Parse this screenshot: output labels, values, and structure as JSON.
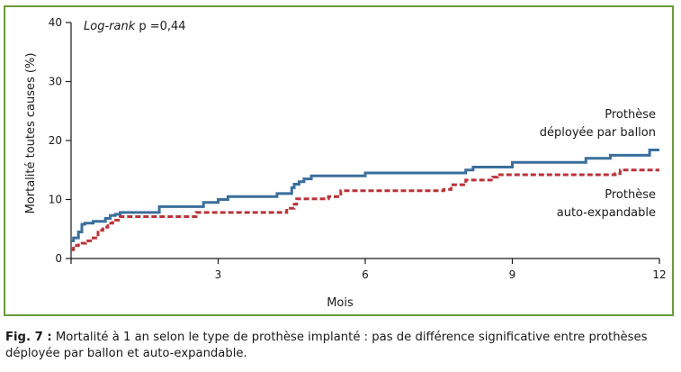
{
  "chart_data": {
    "type": "line",
    "xlabel": "Mois",
    "ylabel": "Mortalité toutes causes (%)",
    "x_ticks": [
      0,
      3,
      6,
      9,
      12
    ],
    "x_tick_labels": [
      "",
      "3",
      "6",
      "9",
      "12"
    ],
    "y_ticks": [
      0,
      10,
      20,
      30,
      40
    ],
    "y_tick_labels": [
      "0",
      "10",
      "20",
      "30",
      "40"
    ],
    "xlim": [
      0,
      12
    ],
    "ylim": [
      0,
      40
    ],
    "grid": false,
    "annotation_prefix": "Log-rank",
    "annotation_value": " p =0,44",
    "series": [
      {
        "name_line1": "Prothèse",
        "name_line2": "déployée par ballon",
        "color": "#3a6f9c",
        "style": "solid",
        "x": [
          0,
          0.05,
          0.15,
          0.22,
          0.28,
          0.45,
          0.7,
          0.8,
          0.9,
          1.0,
          1.8,
          2.7,
          3.0,
          3.2,
          4.2,
          4.5,
          4.55,
          4.65,
          4.75,
          4.9,
          6.0,
          8.05,
          8.2,
          9.0,
          10.5,
          11.0,
          11.8,
          12.0
        ],
        "y": [
          3.0,
          3.5,
          4.5,
          5.8,
          6.0,
          6.3,
          6.8,
          7.3,
          7.5,
          7.8,
          8.8,
          9.5,
          10.0,
          10.5,
          11.0,
          12.0,
          12.6,
          13.0,
          13.5,
          14.0,
          14.5,
          15.0,
          15.5,
          16.3,
          17.0,
          17.5,
          18.4,
          18.4
        ]
      },
      {
        "name_line1": "Prothèse",
        "name_line2": "auto-expandable",
        "color": "#b8343a",
        "style": "dashed",
        "x": [
          0,
          0.05,
          0.15,
          0.3,
          0.45,
          0.55,
          0.65,
          0.75,
          0.85,
          1.0,
          2.55,
          4.4,
          4.55,
          4.6,
          5.25,
          5.5,
          7.6,
          7.75,
          8.05,
          8.6,
          8.7,
          11.1,
          11.2,
          12.0
        ],
        "y": [
          1.5,
          2.2,
          2.6,
          3.0,
          3.5,
          4.8,
          5.3,
          6.0,
          6.5,
          7.1,
          7.8,
          8.5,
          9.2,
          10.1,
          10.5,
          11.5,
          11.7,
          12.5,
          13.3,
          13.8,
          14.2,
          14.4,
          15.0,
          15.0
        ]
      }
    ]
  },
  "caption": {
    "label": "Fig. 7 :",
    "text": " Mortalité à 1 an selon le type de prothèse implanté : pas de différence significative entre prothèses déployée par ballon et auto-expandable."
  }
}
